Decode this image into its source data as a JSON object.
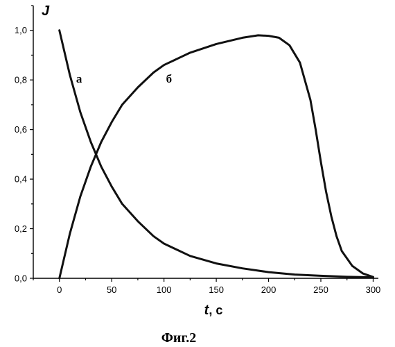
{
  "chart_data": {
    "type": "line",
    "ylabel": "J",
    "xlabel_var": "t",
    "xlabel_unit": ", с",
    "caption": "Фиг.2",
    "xlim": [
      -25,
      305
    ],
    "ylim": [
      0,
      1.1
    ],
    "x_ticks": [
      0,
      50,
      100,
      150,
      200,
      250,
      300
    ],
    "x_tick_labels": [
      "0",
      "50",
      "100",
      "150",
      "200",
      "250",
      "300"
    ],
    "y_ticks": [
      0.0,
      0.2,
      0.4,
      0.6,
      0.8,
      1.0
    ],
    "y_tick_labels": [
      "0,0",
      "0,2",
      "0,4",
      "0,6",
      "0,8",
      "1,0"
    ],
    "grid": false,
    "series": [
      {
        "name": "а",
        "x": [
          0,
          10,
          20,
          30,
          40,
          50,
          60,
          75,
          90,
          100,
          125,
          150,
          175,
          200,
          225,
          250,
          275,
          300
        ],
        "y": [
          1.0,
          0.82,
          0.67,
          0.55,
          0.45,
          0.37,
          0.3,
          0.23,
          0.17,
          0.14,
          0.09,
          0.06,
          0.04,
          0.025,
          0.015,
          0.01,
          0.006,
          0.004
        ]
      },
      {
        "name": "б",
        "x": [
          0,
          10,
          20,
          30,
          40,
          50,
          60,
          75,
          90,
          100,
          125,
          150,
          175,
          190,
          200,
          210,
          220,
          230,
          240,
          245,
          250,
          255,
          260,
          265,
          270,
          280,
          290,
          300
        ],
        "y": [
          0.0,
          0.18,
          0.33,
          0.45,
          0.55,
          0.63,
          0.7,
          0.77,
          0.83,
          0.86,
          0.91,
          0.945,
          0.97,
          0.98,
          0.978,
          0.97,
          0.94,
          0.87,
          0.72,
          0.6,
          0.47,
          0.35,
          0.25,
          0.17,
          0.11,
          0.05,
          0.02,
          0.005
        ]
      }
    ]
  }
}
